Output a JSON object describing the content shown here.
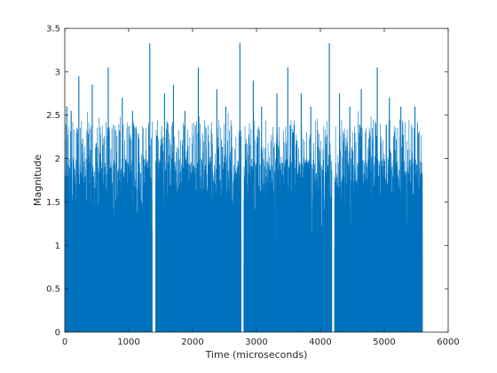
{
  "chart_data": {
    "type": "bar",
    "title": "",
    "xlabel": "Time (microseconds)",
    "ylabel": "Magnitude",
    "xlim": [
      0,
      6000
    ],
    "ylim": [
      0,
      3.5
    ],
    "xticks": [
      0,
      1000,
      2000,
      3000,
      4000,
      5000,
      6000
    ],
    "yticks": [
      0,
      0.5,
      1,
      1.5,
      2,
      2.5,
      3,
      3.5
    ],
    "xtick_labels": [
      "0",
      "1000",
      "2000",
      "3000",
      "4000",
      "5000",
      "6000"
    ],
    "ytick_labels": [
      "0",
      "0.5",
      "1",
      "1.5",
      "2",
      "2.5",
      "3",
      "3.5"
    ],
    "grid": false,
    "box": true,
    "series": [
      {
        "color": "#0072BD",
        "style": "dense stem / vertical lines from 0",
        "x_range": [
          0,
          5600
        ],
        "typical_max": 2.2,
        "dense_band_max": 2.0,
        "gaps": [
          1370,
          1420,
          2760,
          2800,
          4180,
          4220
        ],
        "peaks": [
          {
            "x": 30,
            "y": 2.6
          },
          {
            "x": 100,
            "y": 2.55
          },
          {
            "x": 220,
            "y": 2.95
          },
          {
            "x": 430,
            "y": 2.85
          },
          {
            "x": 680,
            "y": 3.05
          },
          {
            "x": 900,
            "y": 2.7
          },
          {
            "x": 1060,
            "y": 2.55
          },
          {
            "x": 1330,
            "y": 3.33
          },
          {
            "x": 1560,
            "y": 2.75
          },
          {
            "x": 1700,
            "y": 2.85
          },
          {
            "x": 1880,
            "y": 2.55
          },
          {
            "x": 2090,
            "y": 3.05
          },
          {
            "x": 2380,
            "y": 2.8
          },
          {
            "x": 2520,
            "y": 2.6
          },
          {
            "x": 2740,
            "y": 3.33
          },
          {
            "x": 2950,
            "y": 2.9
          },
          {
            "x": 3080,
            "y": 2.6
          },
          {
            "x": 3320,
            "y": 2.75
          },
          {
            "x": 3490,
            "y": 3.05
          },
          {
            "x": 3700,
            "y": 2.75
          },
          {
            "x": 3850,
            "y": 2.6
          },
          {
            "x": 4140,
            "y": 3.33
          },
          {
            "x": 4300,
            "y": 2.75
          },
          {
            "x": 4460,
            "y": 2.6
          },
          {
            "x": 4640,
            "y": 2.8
          },
          {
            "x": 4890,
            "y": 3.05
          },
          {
            "x": 5080,
            "y": 2.7
          },
          {
            "x": 5260,
            "y": 2.6
          },
          {
            "x": 5480,
            "y": 2.6
          }
        ]
      }
    ]
  }
}
